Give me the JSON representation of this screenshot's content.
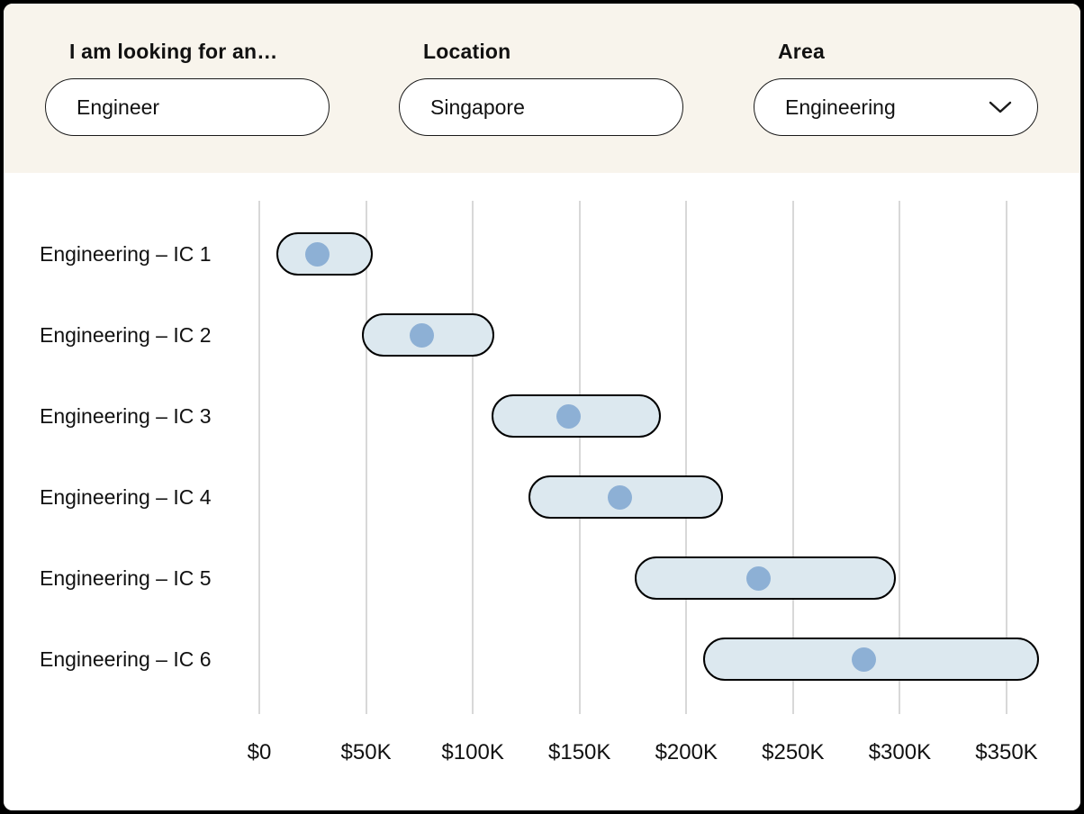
{
  "header": {
    "fields": [
      {
        "label": "I am looking for an…",
        "value": "Engineer"
      },
      {
        "label": "Location",
        "value": "Singapore"
      },
      {
        "label": "Area",
        "value": "Engineering"
      }
    ]
  },
  "icons": {
    "area_dropdown": "chevron-down-icon"
  },
  "colors": {
    "header_bg": "#F8F4EC",
    "chart_bg": "#FFFFFF",
    "range_fill": "#DCE8EF",
    "range_border": "#000000",
    "median_dot": "#8DB0D5",
    "gridline": "#D8D8D8",
    "text": "#111111"
  },
  "chart_data": {
    "type": "bar",
    "subtype": "horizontal-salary-range-with-median-dot",
    "title": "",
    "xlabel": "",
    "ylabel": "",
    "categories": [
      "Engineering – IC 1",
      "Engineering – IC 2",
      "Engineering – IC 3",
      "Engineering – IC 4",
      "Engineering – IC 5",
      "Engineering – IC 6"
    ],
    "series": [
      {
        "name": "min",
        "values": [
          8000,
          48000,
          109000,
          126000,
          176000,
          208000
        ]
      },
      {
        "name": "median",
        "values": [
          27000,
          76000,
          145000,
          169000,
          234000,
          283000
        ]
      },
      {
        "name": "max",
        "values": [
          53000,
          110000,
          188000,
          217000,
          298000,
          365000
        ]
      }
    ],
    "x_ticks": [
      "$0",
      "$50K",
      "$100K",
      "$150K",
      "$200K",
      "$250K",
      "$300K",
      "$350K"
    ],
    "x_tick_values": [
      0,
      50000,
      100000,
      150000,
      200000,
      250000,
      300000,
      350000
    ],
    "xlim": [
      0,
      388000
    ],
    "grid": true,
    "legend": false
  }
}
